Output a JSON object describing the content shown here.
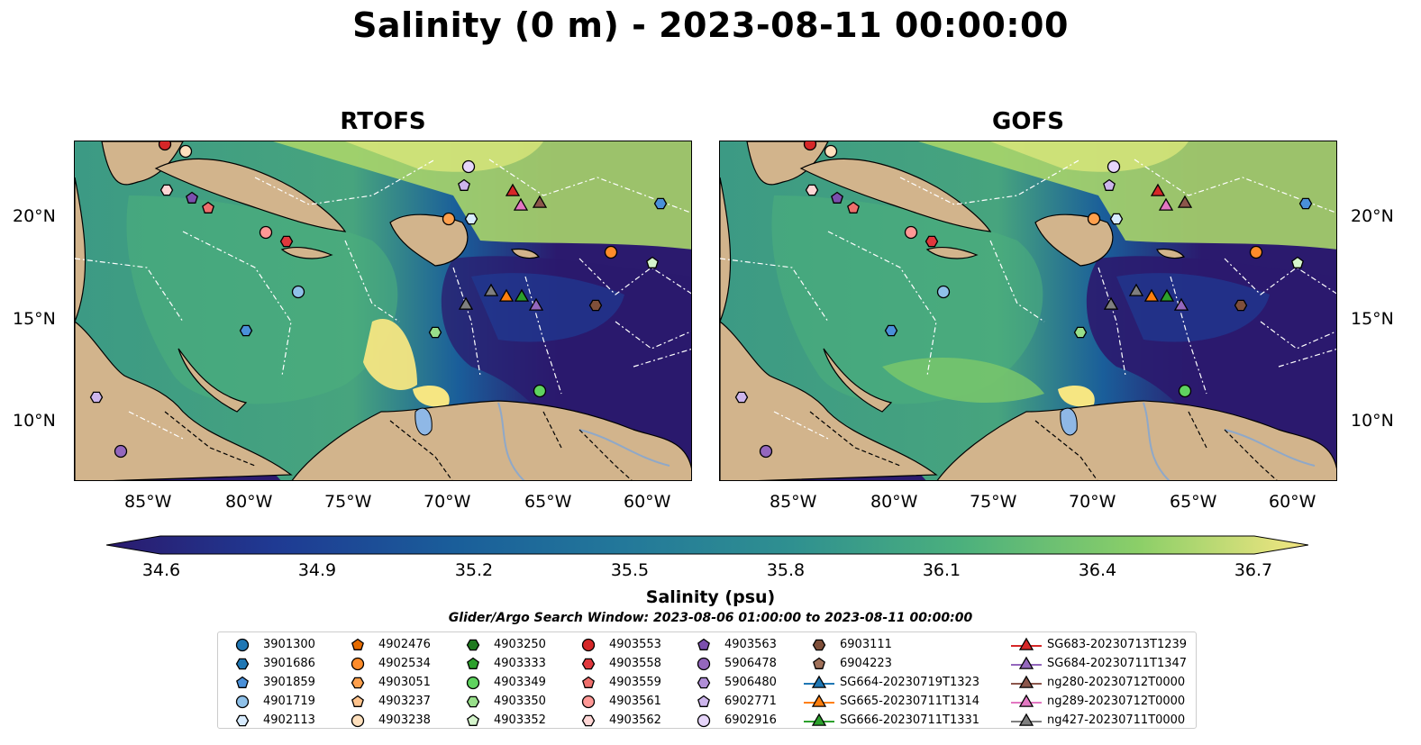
{
  "title": "Salinity (0 m) - 2023-08-11 00:00:00",
  "panels": [
    {
      "title": "RTOFS"
    },
    {
      "title": "GOFS"
    }
  ],
  "axes": {
    "lon_labels": [
      "85°W",
      "80°W",
      "75°W",
      "70°W",
      "65°W",
      "60°W"
    ],
    "lat_labels": [
      "20°N",
      "15°N",
      "10°N"
    ]
  },
  "colorbar": {
    "label": "Salinity (psu)",
    "ticks": [
      "34.6",
      "34.9",
      "35.2",
      "35.5",
      "35.8",
      "36.1",
      "36.4",
      "36.7"
    ],
    "colors": [
      "#2b1a6e",
      "#1f3a93",
      "#1a5e9a",
      "#23789a",
      "#2f9090",
      "#4bb07d",
      "#8ccf68",
      "#f6e682"
    ]
  },
  "search_window": "Glider/Argo Search Window: 2023-08-06 01:00:00 to 2023-08-11 00:00:00",
  "land_color": "#d2b48c",
  "legend": [
    [
      {
        "label": "3901300",
        "marker": "circle",
        "color": "#1f77b4"
      },
      {
        "label": "3901686",
        "marker": "hexagon",
        "color": "#1f77b4"
      },
      {
        "label": "3901859",
        "marker": "pentagon",
        "color": "#4a90d9"
      },
      {
        "label": "4901719",
        "marker": "circle",
        "color": "#8fc1e9"
      },
      {
        "label": "4902113",
        "marker": "hexagon",
        "color": "#d8ecff"
      }
    ],
    [
      {
        "label": "4902476",
        "marker": "pentagon",
        "color": "#e66b00"
      },
      {
        "label": "4902534",
        "marker": "circle",
        "color": "#ff8c2a"
      },
      {
        "label": "4903051",
        "marker": "hexagon",
        "color": "#ffa04d"
      },
      {
        "label": "4903237",
        "marker": "pentagon",
        "color": "#ffc38c"
      },
      {
        "label": "4903238",
        "marker": "circle",
        "color": "#ffe0bd"
      }
    ],
    [
      {
        "label": "4903250",
        "marker": "hexagon",
        "color": "#1f7a1f"
      },
      {
        "label": "4903333",
        "marker": "pentagon",
        "color": "#2ca02c"
      },
      {
        "label": "4903349",
        "marker": "circle",
        "color": "#5fd35f"
      },
      {
        "label": "4903350",
        "marker": "hexagon",
        "color": "#98df8a"
      },
      {
        "label": "4903352",
        "marker": "pentagon",
        "color": "#d5f5cc"
      }
    ],
    [
      {
        "label": "4903553",
        "marker": "circle",
        "color": "#d62728"
      },
      {
        "label": "4903558",
        "marker": "hexagon",
        "color": "#e0383d"
      },
      {
        "label": "4903559",
        "marker": "pentagon",
        "color": "#ef6f6c"
      },
      {
        "label": "4903561",
        "marker": "circle",
        "color": "#ff9896"
      },
      {
        "label": "4903562",
        "marker": "hexagon",
        "color": "#ffd6d5"
      }
    ],
    [
      {
        "label": "4903563",
        "marker": "pentagon",
        "color": "#7b4fae"
      },
      {
        "label": "5906478",
        "marker": "circle",
        "color": "#9467bd"
      },
      {
        "label": "5906480",
        "marker": "hexagon",
        "color": "#b08ed6"
      },
      {
        "label": "6902771",
        "marker": "pentagon",
        "color": "#cdb5ec"
      },
      {
        "label": "6902916",
        "marker": "circle",
        "color": "#e6d5fa"
      }
    ],
    [
      {
        "label": "6903111",
        "marker": "hexagon",
        "color": "#7f4f3a"
      },
      {
        "label": "6904223",
        "marker": "pentagon",
        "color": "#a0715a"
      },
      {
        "label": "SG664-20230719T1323",
        "marker": "triangle-line",
        "color": "#1f77b4"
      },
      {
        "label": "SG665-20230711T1314",
        "marker": "triangle-line",
        "color": "#ff7f0e"
      },
      {
        "label": "SG666-20230711T1331",
        "marker": "triangle-line",
        "color": "#2ca02c"
      }
    ],
    [
      {
        "label": "SG683-20230713T1239",
        "marker": "triangle-line",
        "color": "#d62728"
      },
      {
        "label": "SG684-20230711T1347",
        "marker": "triangle-line",
        "color": "#9467bd"
      },
      {
        "label": "ng280-20230712T0000",
        "marker": "triangle-line",
        "color": "#8c564b"
      },
      {
        "label": "ng289-20230712T0000",
        "marker": "triangle-line",
        "color": "#e377c2"
      },
      {
        "label": "ng427-20230711T0000",
        "marker": "triangle-line",
        "color": "#7f7f7f"
      }
    ]
  ]
}
